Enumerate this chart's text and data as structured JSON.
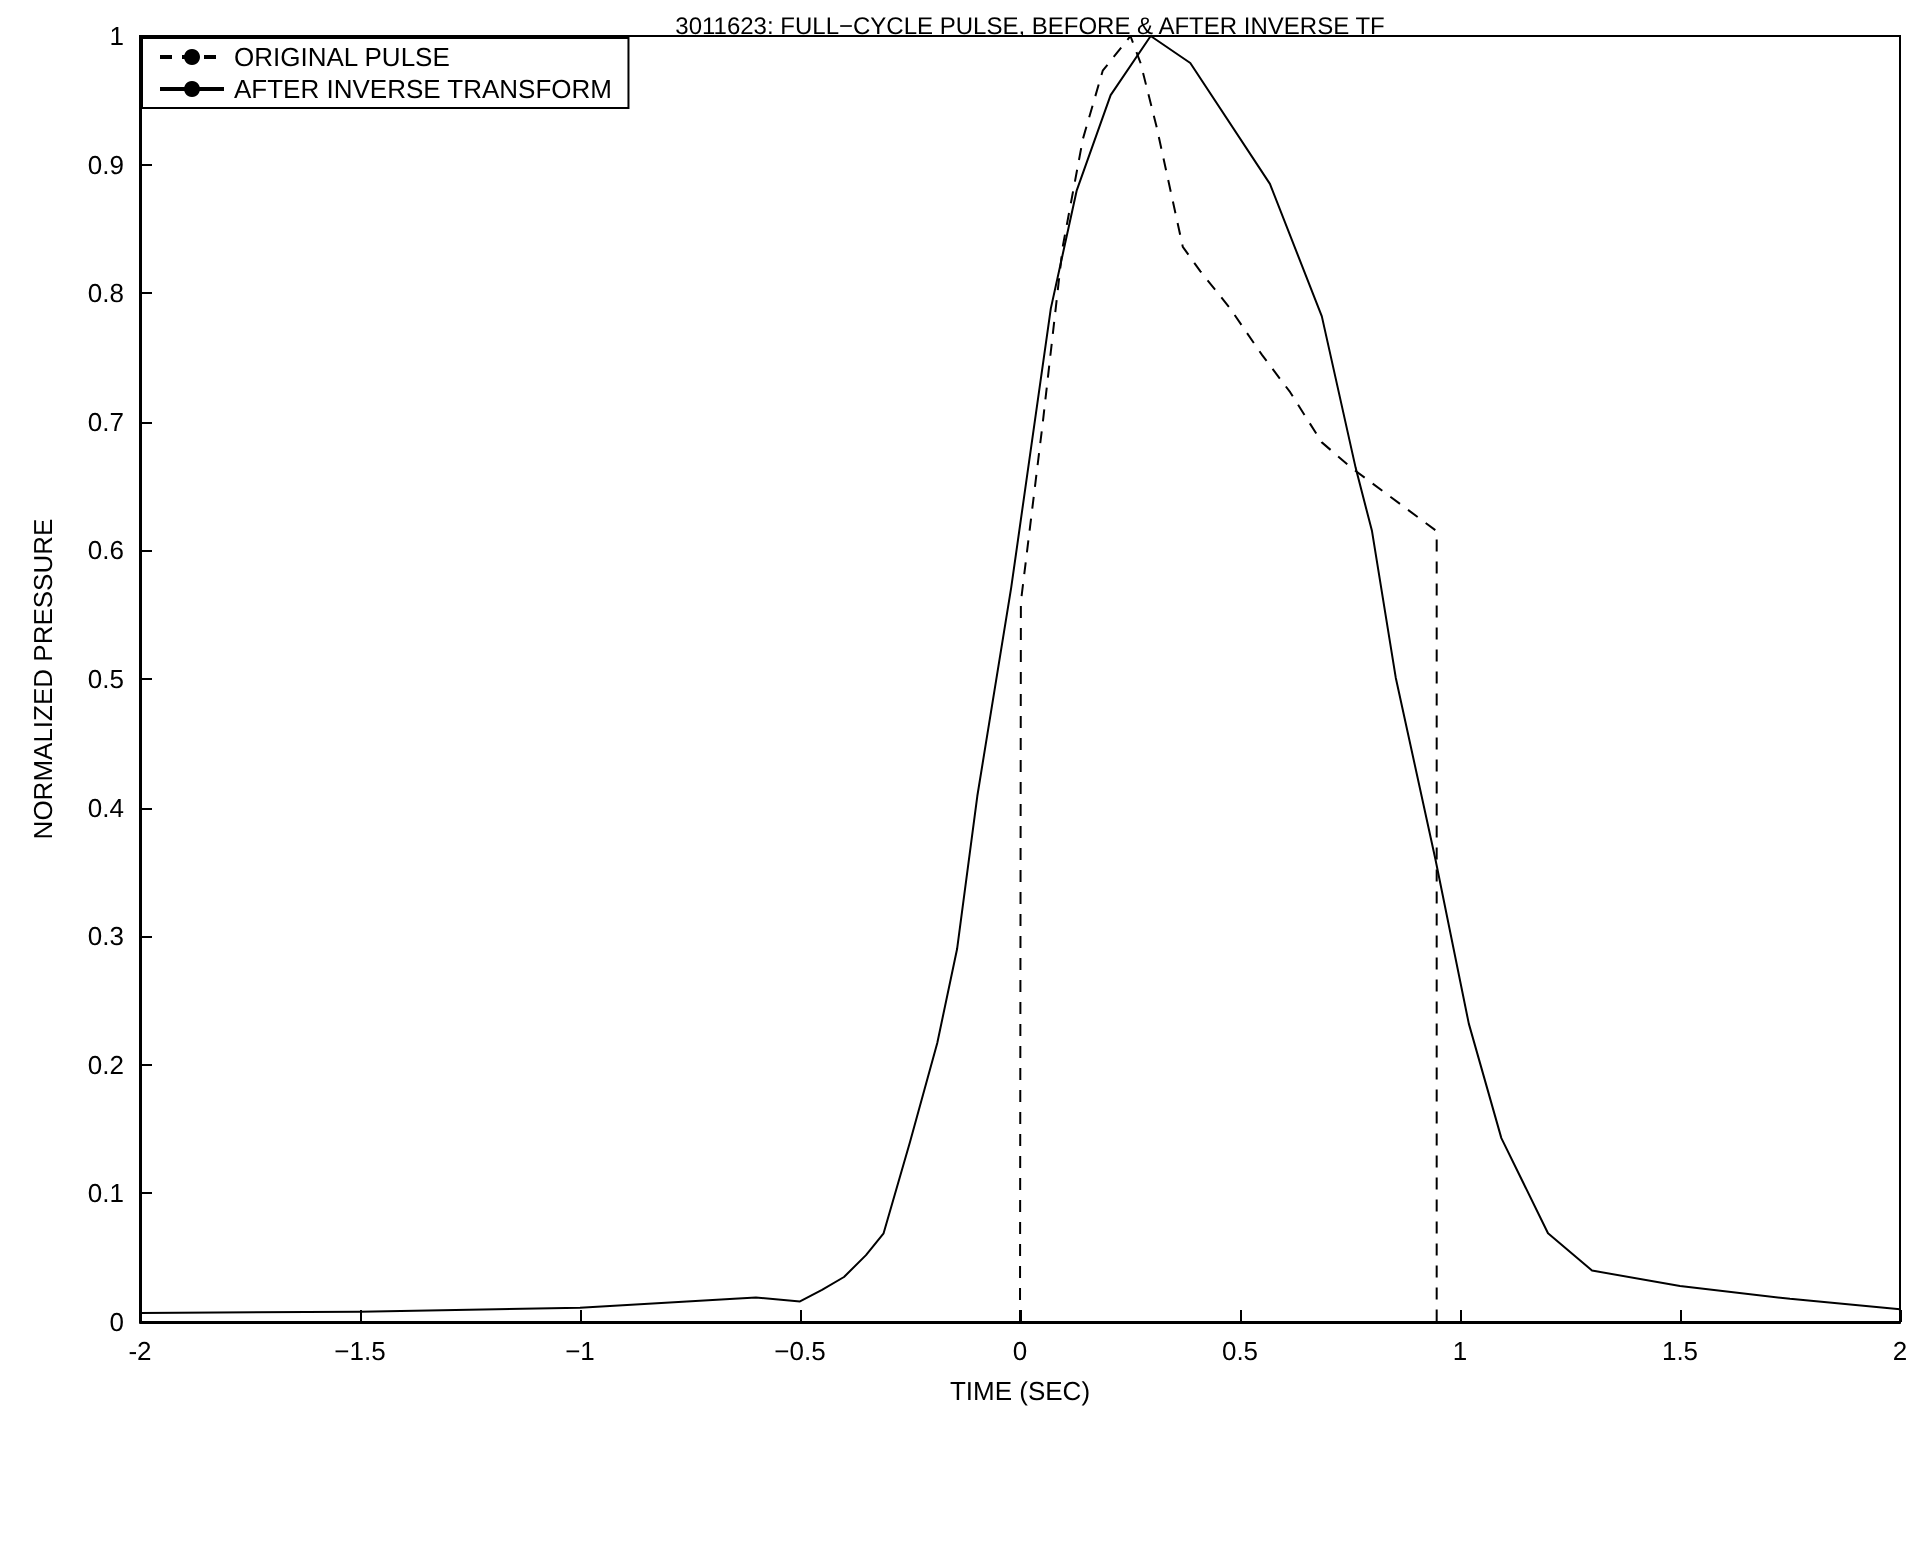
{
  "chart_data": {
    "type": "line",
    "title": "3011623: FULL−CYCLE PULSE, BEFORE & AFTER INVERSE TF",
    "xlabel": "TIME (SEC)",
    "ylabel": "NORMALIZED PRESSURE",
    "xlim": [
      -2,
      2
    ],
    "ylim": [
      0,
      1
    ],
    "xticks": [
      -2,
      {
        "value": -1.5,
        "label": "−1.5"
      },
      {
        "value": -1,
        "label": "−1"
      },
      {
        "value": -0.5,
        "label": "−0.5"
      },
      0,
      0.5,
      1,
      1.5,
      2
    ],
    "yticks": [
      0,
      0.1,
      0.2,
      0.3,
      0.4,
      0.5,
      0.6,
      0.7,
      0.8,
      0.9,
      1
    ],
    "grid": false,
    "legend": "top left",
    "marker": "none",
    "series": [
      {
        "name": "ORIGINAL PULSE",
        "color": "#000000",
        "line_style": "dashed",
        "x": [
          0,
          0.002,
          0.052,
          0.097,
          0.143,
          0.188,
          0.251,
          0.274,
          0.31,
          0.37,
          0.41,
          0.478,
          0.55,
          0.614,
          0.686,
          0.754,
          0.947,
          0.947
        ],
        "values": [
          0,
          0.56,
          0.7,
          0.836,
          0.92,
          0.973,
          1,
          0.979,
          0.93,
          0.836,
          0.817,
          0.788,
          0.752,
          0.723,
          0.684,
          0.664,
          0.615,
          0
        ]
      },
      {
        "name": "AFTER INVERSE TRANSFORM",
        "color": "#000000",
        "line_style": "solid",
        "x": [
          -2,
          -1.5,
          -1,
          -0.65,
          -0.6,
          -0.5,
          -0.45,
          -0.4,
          -0.35,
          -0.31,
          -0.25,
          -0.188,
          -0.143,
          -0.097,
          -0.02,
          0.07,
          0.129,
          0.206,
          0.297,
          0.387,
          0.568,
          0.686,
          0.763,
          0.8,
          0.854,
          0.944,
          1.02,
          1.094,
          1.2,
          1.3,
          1.5,
          1.75,
          2
        ],
        "values": [
          0.007,
          0.008,
          0.011,
          0.018,
          0.019,
          0.016,
          0.025,
          0.035,
          0.052,
          0.069,
          0.14,
          0.217,
          0.29,
          0.409,
          0.571,
          0.788,
          0.88,
          0.954,
          1,
          0.979,
          0.885,
          0.782,
          0.664,
          0.615,
          0.501,
          0.36,
          0.232,
          0.143,
          0.069,
          0.04,
          0.028,
          0.018,
          0.01
        ]
      }
    ]
  }
}
